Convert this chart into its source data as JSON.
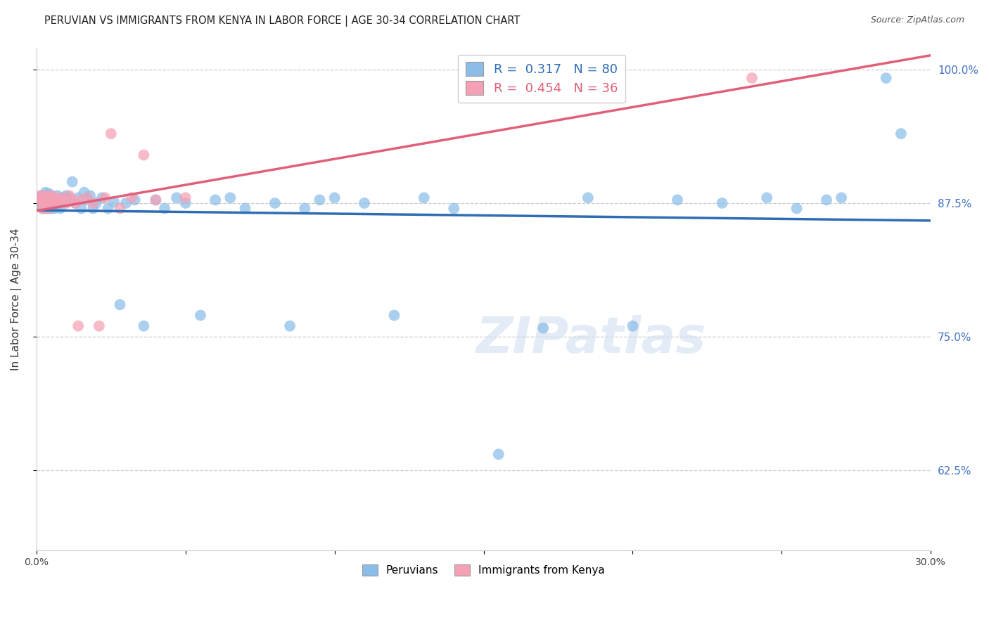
{
  "title": "PERUVIAN VS IMMIGRANTS FROM KENYA IN LABOR FORCE | AGE 30-34 CORRELATION CHART",
  "source": "Source: ZipAtlas.com",
  "ylabel": "In Labor Force | Age 30-34",
  "xlim": [
    0.0,
    0.3
  ],
  "ylim": [
    0.55,
    1.02
  ],
  "yticks": [
    0.625,
    0.75,
    0.875,
    1.0
  ],
  "ytick_labels": [
    "62.5%",
    "75.0%",
    "87.5%",
    "100.0%"
  ],
  "xticks": [
    0.0,
    0.05,
    0.1,
    0.15,
    0.2,
    0.25,
    0.3
  ],
  "xtick_labels": [
    "0.0%",
    "",
    "",
    "",
    "",
    "",
    "30.0%"
  ],
  "blue_R": 0.317,
  "blue_N": 80,
  "pink_R": 0.454,
  "pink_N": 36,
  "blue_color": "#8BBDE8",
  "pink_color": "#F4A0B5",
  "blue_line_color": "#2E6DB4",
  "pink_line_color": "#E0607A",
  "legend_label_blue": "Peruvians",
  "legend_label_pink": "Immigrants from Kenya",
  "watermark": "ZIPatlas",
  "blue_scatter_x": [
    0.001,
    0.001,
    0.001,
    0.002,
    0.002,
    0.002,
    0.002,
    0.003,
    0.003,
    0.003,
    0.003,
    0.003,
    0.003,
    0.004,
    0.004,
    0.004,
    0.004,
    0.004,
    0.005,
    0.005,
    0.005,
    0.005,
    0.006,
    0.006,
    0.006,
    0.007,
    0.007,
    0.007,
    0.008,
    0.008,
    0.009,
    0.009,
    0.01,
    0.01,
    0.011,
    0.012,
    0.013,
    0.014,
    0.015,
    0.016,
    0.017,
    0.018,
    0.019,
    0.02,
    0.022,
    0.024,
    0.026,
    0.028,
    0.03,
    0.033,
    0.036,
    0.04,
    0.043,
    0.047,
    0.05,
    0.055,
    0.06,
    0.065,
    0.07,
    0.08,
    0.085,
    0.09,
    0.095,
    0.1,
    0.11,
    0.12,
    0.13,
    0.14,
    0.155,
    0.17,
    0.185,
    0.2,
    0.215,
    0.23,
    0.245,
    0.255,
    0.265,
    0.27,
    0.285,
    0.29
  ],
  "blue_scatter_y": [
    0.88,
    0.875,
    0.872,
    0.882,
    0.876,
    0.87,
    0.878,
    0.88,
    0.875,
    0.87,
    0.878,
    0.882,
    0.885,
    0.875,
    0.87,
    0.878,
    0.88,
    0.884,
    0.875,
    0.87,
    0.878,
    0.882,
    0.875,
    0.87,
    0.88,
    0.876,
    0.882,
    0.878,
    0.87,
    0.875,
    0.878,
    0.88,
    0.882,
    0.876,
    0.88,
    0.895,
    0.875,
    0.88,
    0.87,
    0.885,
    0.878,
    0.882,
    0.87,
    0.875,
    0.88,
    0.87,
    0.876,
    0.78,
    0.875,
    0.878,
    0.76,
    0.878,
    0.87,
    0.88,
    0.875,
    0.77,
    0.878,
    0.88,
    0.87,
    0.875,
    0.76,
    0.87,
    0.878,
    0.88,
    0.875,
    0.77,
    0.88,
    0.87,
    0.64,
    0.758,
    0.88,
    0.76,
    0.878,
    0.875,
    0.88,
    0.87,
    0.878,
    0.88,
    0.992,
    0.94
  ],
  "pink_scatter_x": [
    0.001,
    0.001,
    0.002,
    0.002,
    0.002,
    0.003,
    0.003,
    0.003,
    0.004,
    0.004,
    0.004,
    0.005,
    0.005,
    0.006,
    0.006,
    0.007,
    0.007,
    0.008,
    0.009,
    0.01,
    0.011,
    0.012,
    0.013,
    0.014,
    0.015,
    0.017,
    0.019,
    0.021,
    0.023,
    0.025,
    0.028,
    0.032,
    0.036,
    0.04,
    0.05,
    0.24
  ],
  "pink_scatter_y": [
    0.878,
    0.882,
    0.875,
    0.88,
    0.87,
    0.878,
    0.882,
    0.875,
    0.88,
    0.876,
    0.87,
    0.878,
    0.882,
    0.875,
    0.88,
    0.878,
    0.875,
    0.88,
    0.878,
    0.875,
    0.882,
    0.878,
    0.875,
    0.76,
    0.878,
    0.88,
    0.875,
    0.76,
    0.88,
    0.94,
    0.87,
    0.88,
    0.92,
    0.878,
    0.88,
    0.992
  ]
}
